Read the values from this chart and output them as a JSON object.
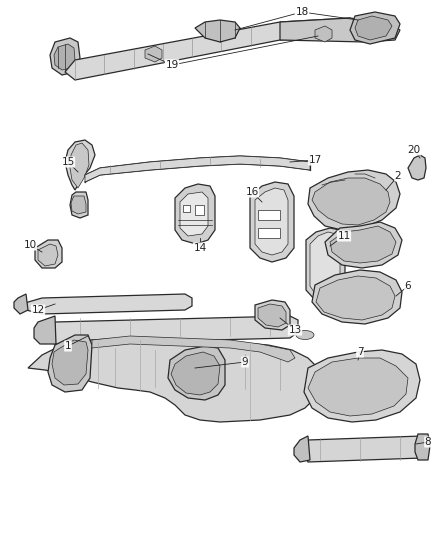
{
  "background_color": "#ffffff",
  "fig_width": 4.38,
  "fig_height": 5.33,
  "dpi": 100,
  "edge_color": "#2a2a2a",
  "fill_light": "#e8e8e8",
  "fill_mid": "#d0d0d0",
  "fill_dark": "#b0b0b0",
  "lw_main": 0.9,
  "lw_thin": 0.5,
  "annotation_color": "#222222",
  "annotation_fontsize": 7.5
}
